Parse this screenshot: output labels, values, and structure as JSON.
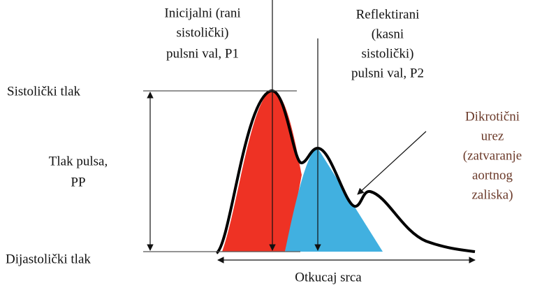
{
  "labels": {
    "p1": [
      "Inicijalni (rani",
      "sistolički)",
      "pulsni val, P1"
    ],
    "p2": [
      "Reflektirani",
      "(kasni",
      "sistolički)",
      "pulsni val, P2"
    ],
    "systolic": "Sistolički tlak",
    "pulse_pressure": [
      "Tlak pulsa,",
      "PP"
    ],
    "diastolic": "Dijastolički tlak",
    "dicrotic": [
      "Dikrotični",
      "urez",
      "(zatvaranje",
      "aortnog",
      "zaliska)"
    ],
    "heartbeat": "Otkucaj srca"
  }
}
